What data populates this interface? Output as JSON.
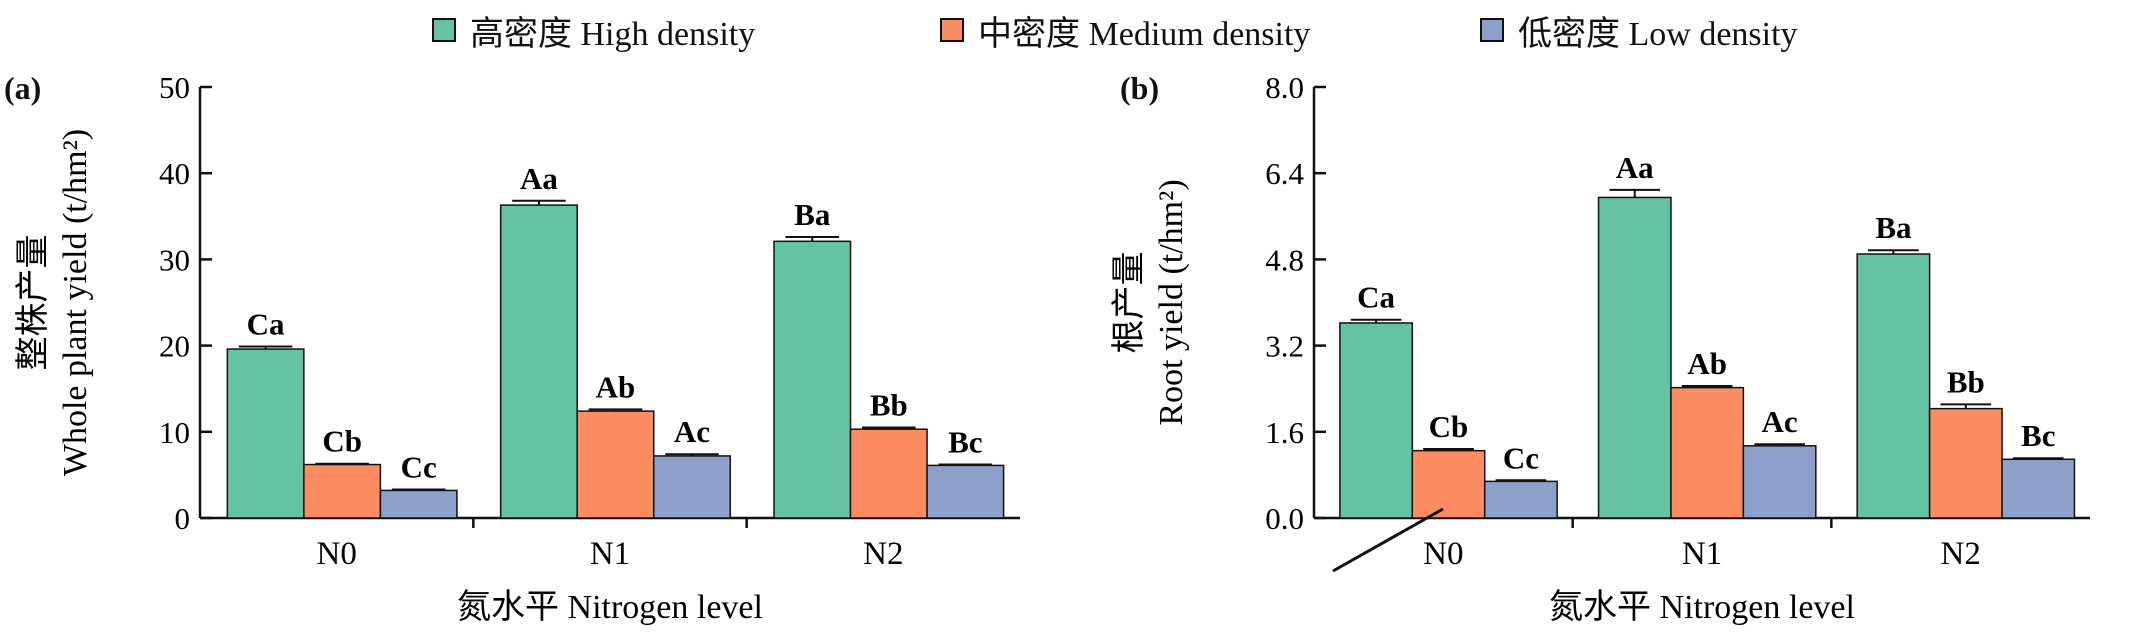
{
  "colors": {
    "high": "#66c2a5",
    "medium": "#fc8d62",
    "low": "#8da0cb",
    "axis": "#111111"
  },
  "legend": [
    {
      "key": "high",
      "label": "高密度 High density"
    },
    {
      "key": "medium",
      "label": "中密度 Medium density"
    },
    {
      "key": "low",
      "label": "低密度 Low density"
    }
  ],
  "chart_data": [
    {
      "type": "bar",
      "panel": "(a)",
      "ylabel_cn": "整株产量",
      "ylabel_en": "Whole plant yield (t/hm²)",
      "xlabel": "氮水平 Nitrogen level",
      "categories": [
        "N0",
        "N1",
        "N2"
      ],
      "ylim": [
        0,
        50
      ],
      "yticks": [
        "0",
        "10",
        "20",
        "30",
        "40",
        "50"
      ],
      "series": [
        {
          "name": "高密度 High density",
          "key": "high",
          "values": [
            19.6,
            36.3,
            32.1
          ],
          "errors": [
            0.3,
            0.5,
            0.5
          ],
          "labels": [
            "Ca",
            "Aa",
            "Ba"
          ]
        },
        {
          "name": "中密度 Medium density",
          "key": "medium",
          "values": [
            6.2,
            12.4,
            10.3
          ],
          "errors": [
            0.1,
            0.2,
            0.2
          ],
          "labels": [
            "Cb",
            "Ab",
            "Bb"
          ]
        },
        {
          "name": "低密度 Low density",
          "key": "low",
          "values": [
            3.2,
            7.2,
            6.1
          ],
          "errors": [
            0.1,
            0.2,
            0.1
          ],
          "labels": [
            "Cc",
            "Ac",
            "Bc"
          ]
        }
      ]
    },
    {
      "type": "bar",
      "panel": "(b)",
      "ylabel_cn": "根产量",
      "ylabel_en": "Root yield (t/hm²)",
      "xlabel": "氮水平 Nitrogen level",
      "categories": [
        "N0",
        "N1",
        "N2"
      ],
      "ylim": [
        0,
        8
      ],
      "yticks": [
        "0.0",
        "1.6",
        "3.2",
        "4.8",
        "6.4",
        "8.0"
      ],
      "series": [
        {
          "name": "高密度 High density",
          "key": "high",
          "values": [
            3.62,
            5.95,
            4.9
          ],
          "errors": [
            0.06,
            0.14,
            0.07
          ],
          "labels": [
            "Ca",
            "Aa",
            "Ba"
          ]
        },
        {
          "name": "中密度 Medium density",
          "key": "medium",
          "values": [
            1.25,
            2.42,
            2.03
          ],
          "errors": [
            0.03,
            0.03,
            0.08
          ],
          "labels": [
            "Cb",
            "Ab",
            "Bb"
          ]
        },
        {
          "name": "低密度 Low density",
          "key": "low",
          "values": [
            0.68,
            1.34,
            1.09
          ],
          "errors": [
            0.02,
            0.03,
            0.02
          ],
          "labels": [
            "Cc",
            "Ac",
            "Bc"
          ]
        }
      ]
    }
  ]
}
